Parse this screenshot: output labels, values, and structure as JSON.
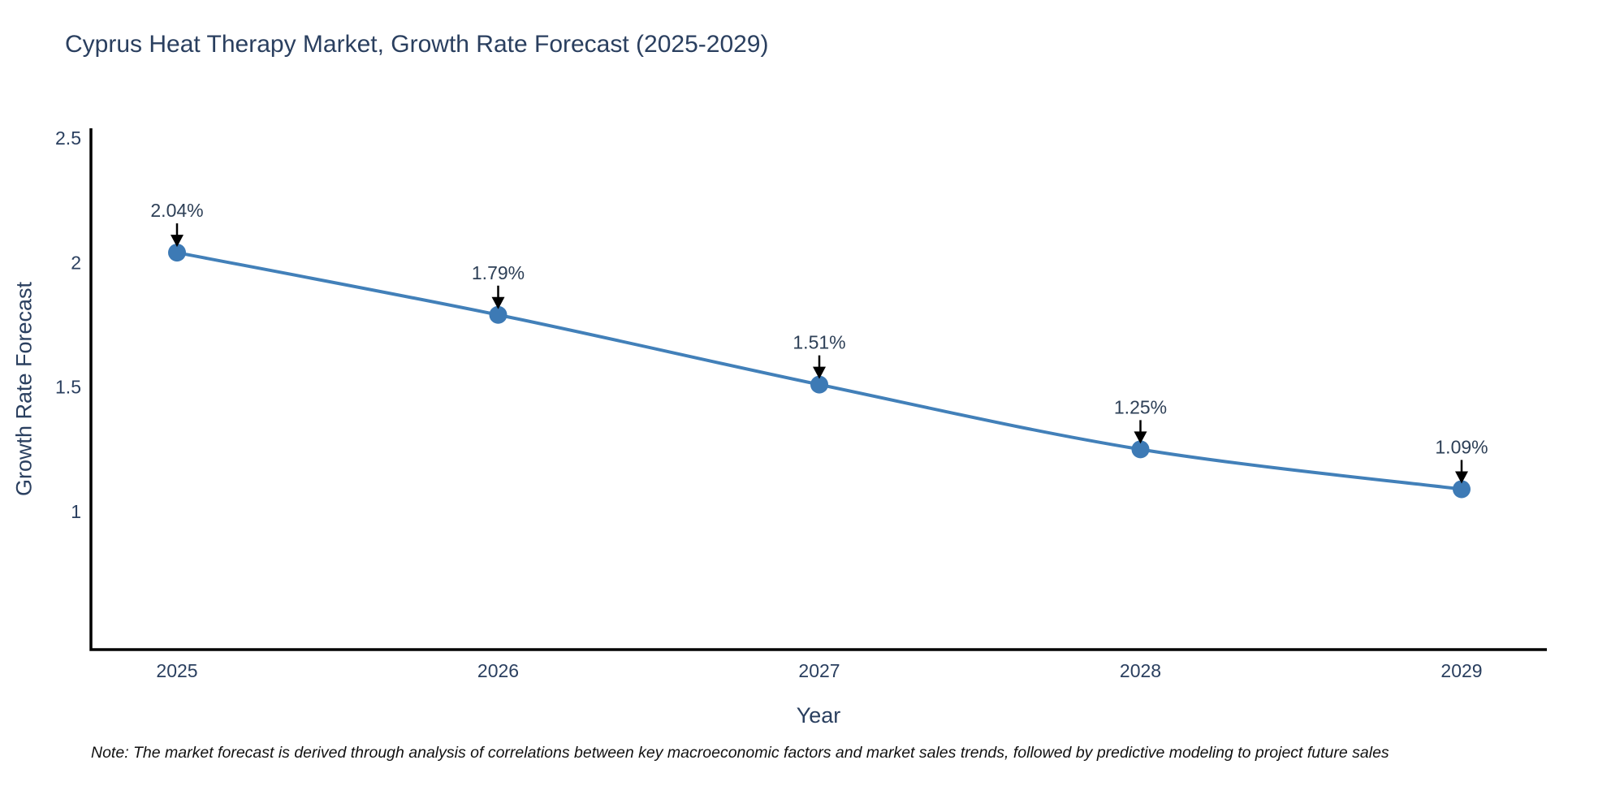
{
  "page": {
    "background": "#ffffff"
  },
  "chart_data": {
    "type": "line",
    "title": "Cyprus Heat Therapy Market, Growth Rate Forecast (2025-2029)",
    "xlabel": "Year",
    "ylabel": "Growth Rate Forecast",
    "x": [
      2025,
      2026,
      2027,
      2028,
      2029
    ],
    "y": [
      2.04,
      1.79,
      1.51,
      1.25,
      1.09
    ],
    "point_labels": [
      "2.04%",
      "1.79%",
      "1.51%",
      "1.25%",
      "1.09%"
    ],
    "x_tick_labels": [
      "2025",
      "2026",
      "2027",
      "2028",
      "2029"
    ],
    "y_ticks": [
      2.5,
      2,
      1.5,
      1
    ],
    "y_tick_labels": [
      "2.5",
      "2",
      "1.5",
      "1"
    ],
    "ylim": [
      0.45,
      2.55
    ],
    "grid": false,
    "legend": "none",
    "line_color": "#4280b9",
    "marker_color": "#3d7ab5",
    "axis_color": "#000000",
    "text_color": "#2a3f5f",
    "annotation_text_color": "#2e4057",
    "annotation_arrow_color": "#000000"
  },
  "note": {
    "text": "Note: The market forecast is derived through analysis of correlations between key macroeconomic factors and market sales trends, followed by predictive modeling to project future sales"
  }
}
